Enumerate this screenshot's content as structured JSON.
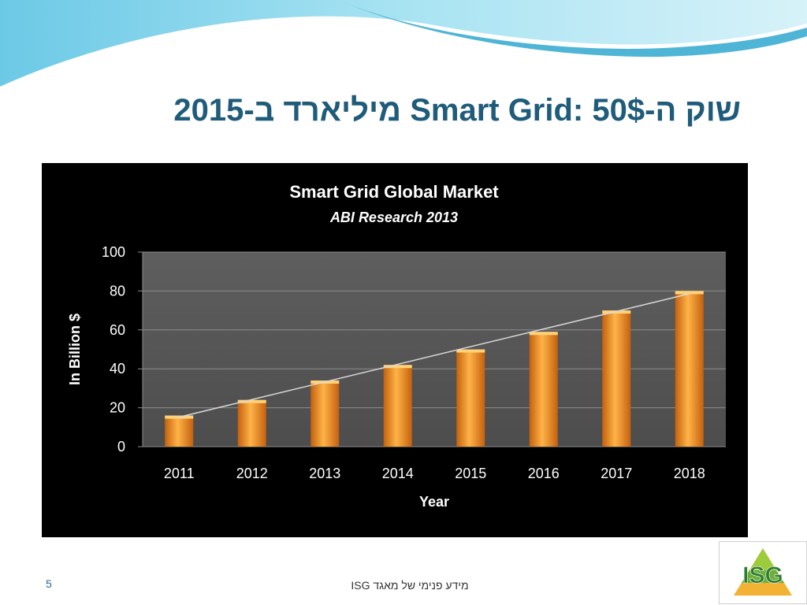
{
  "slide": {
    "title": "שוק ה-Smart Grid: 50$ מיליארד ב-2015",
    "page_number": "5",
    "footer": "מידע פנימי של מאגד ISG",
    "logo_text": "ISG"
  },
  "colors": {
    "title": "#1f5b7a",
    "chart_background": "#000000",
    "plot_area": "#595959",
    "bar": "#f39a2b",
    "trendline": "#d9d9d9",
    "wave_light": "#a6e0ef",
    "wave_dark": "#2fa8cf"
  },
  "chart_data": {
    "type": "bar",
    "title": "Smart Grid Global Market",
    "subtitle": "ABI Research 2013",
    "xlabel": "Year",
    "ylabel": "In Billion $",
    "categories": [
      "2011",
      "2012",
      "2013",
      "2014",
      "2015",
      "2016",
      "2017",
      "2018"
    ],
    "values": [
      16,
      24,
      34,
      42,
      50,
      59,
      70,
      80
    ],
    "ylim": [
      0,
      100
    ],
    "yticks": [
      0,
      20,
      40,
      60,
      80,
      100
    ],
    "grid": true,
    "legend": "none",
    "trendline": "linear"
  }
}
